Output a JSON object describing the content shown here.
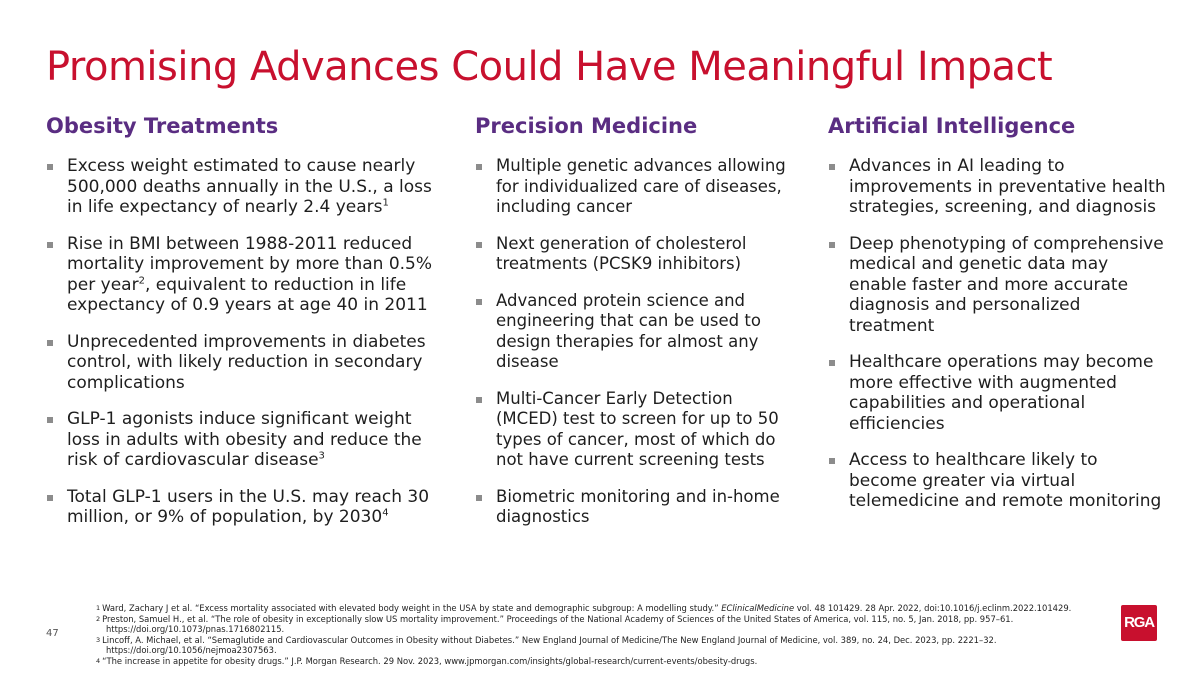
{
  "slide": {
    "title": "Promising Advances Could Have Meaningful Impact",
    "page_number": "47",
    "accent_color": "#c8102e",
    "heading_color": "#5a2d82",
    "logo_text": "RGA"
  },
  "columns": [
    {
      "heading": "Obesity Treatments",
      "bullets": [
        {
          "text": "Excess weight estimated to cause nearly 500,000 deaths annually in the U.S., a loss in life expectancy of nearly 2.4 years",
          "sup": "1"
        },
        {
          "pre": "Rise in BMI between 1988-2011 reduced mortality improvement by more than 0.5% per year",
          "sup": "2",
          "post": ", equivalent to reduction in life expectancy of 0.9 years at age 40 in 2011"
        },
        {
          "text": "Unprecedented improvements in diabetes control, with likely reduction in secondary complications"
        },
        {
          "text": "GLP-1 agonists induce significant weight loss in adults with obesity and reduce the risk of cardiovascular disease",
          "sup": "3"
        },
        {
          "text": "Total GLP-1 users in the U.S. may reach 30 million, or 9% of population, by 2030",
          "sup": "4"
        }
      ]
    },
    {
      "heading": "Precision Medicine",
      "bullets": [
        {
          "text": "Multiple genetic advances allowing for individualized care of diseases, including cancer"
        },
        {
          "text": "Next generation of cholesterol treatments (PCSK9 inhibitors)"
        },
        {
          "text": "Advanced protein science and engineering that can be used to design therapies for almost any disease"
        },
        {
          "text": "Multi-Cancer Early Detection (MCED) test to screen for up to 50 types of cancer, most of which do not have current screening tests"
        },
        {
          "text": "Biometric monitoring and in-home diagnostics"
        }
      ]
    },
    {
      "heading": "Artificial Intelligence",
      "bullets": [
        {
          "text": "Advances in AI leading to improvements in preventative health strategies, screening, and diagnosis"
        },
        {
          "text": "Deep phenotyping of comprehensive medical and genetic data may enable faster and more accurate diagnosis and personalized treatment"
        },
        {
          "text": "Healthcare operations may become more effective with augmented capabilities and operational efficiencies"
        },
        {
          "text": "Access to healthcare likely to become greater via virtual telemedicine and remote monitoring"
        }
      ]
    }
  ],
  "footnotes": [
    {
      "num": "1",
      "pre": "Ward, Zachary J et al. “Excess mortality associated with elevated body weight in the USA by state and demographic subgroup: A modelling study.” ",
      "em": "EClinicalMedicine",
      "post": " vol. 48 101429. 28 Apr. 2022, doi:10.1016/j.eclinm.2022.101429."
    },
    {
      "num": "2",
      "line1": "Preston, Samuel H., et al. “The role of obesity in exceptionally slow US mortality improvement.” Proceedings of the National Academy of Sciences of the United States of America, vol. 115, no. 5, Jan. 2018, pp. 957–61.",
      "line2": "https://doi.org/10.1073/pnas.1716802115."
    },
    {
      "num": "3",
      "line1": "Lincoff, A. Michael, et al. “Semaglutide and Cardiovascular Outcomes in Obesity without Diabetes.” New England Journal of Medicine/The New England Journal of Medicine, vol. 389, no. 24, Dec. 2023, pp. 2221–32.",
      "line2": "https://doi.org/10.1056/nejmoa2307563."
    },
    {
      "num": "4",
      "text": "“The increase in appetite for obesity drugs.” J.P. Morgan Research. 29 Nov. 2023, www.jpmorgan.com/insights/global-research/current-events/obesity-drugs."
    }
  ]
}
